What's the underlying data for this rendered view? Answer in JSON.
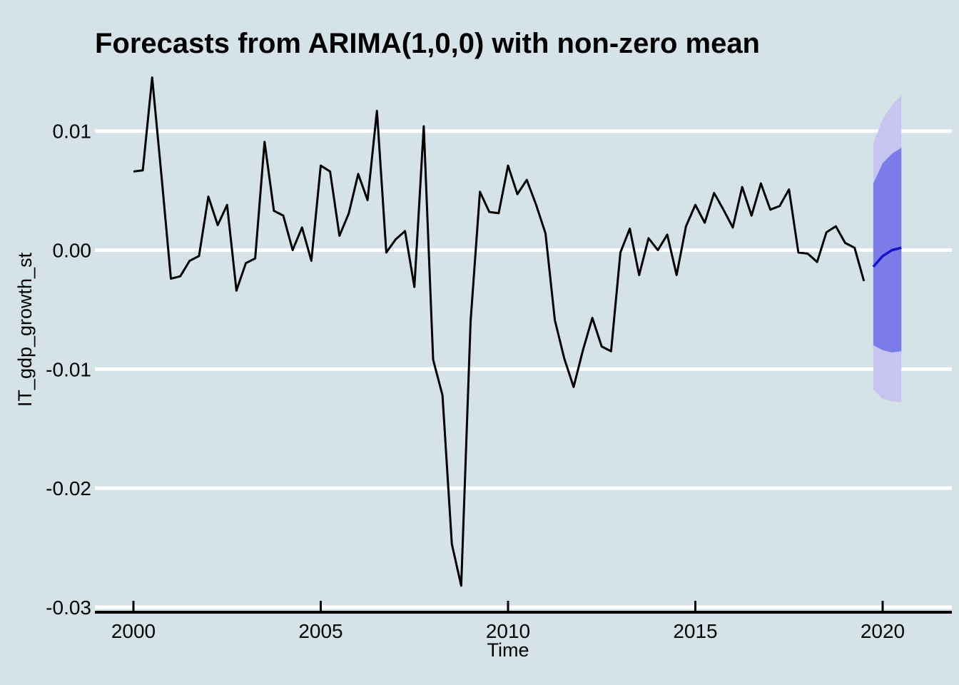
{
  "chart_data": {
    "type": "line",
    "title": "Forecasts from ARIMA(1,0,0) with non-zero mean",
    "xlabel": "Time",
    "ylabel": "IT_gdp_growth_st",
    "x_ticks": [
      2000,
      2005,
      2010,
      2015,
      2020
    ],
    "x_tick_labels": [
      "2000",
      "2005",
      "2010",
      "2015",
      "2020"
    ],
    "y_ticks": [
      0.01,
      0.0,
      -0.01,
      -0.02,
      -0.03
    ],
    "y_tick_labels": [
      "0.01",
      "0.00",
      "-0.01",
      "-0.02",
      "-0.03"
    ],
    "xlim": [
      1999.0,
      2021.8
    ],
    "ylim": [
      -0.0305,
      0.0157
    ],
    "grid": true,
    "legend": false,
    "observed": {
      "name": "IT_gdp_growth_st quarterly series",
      "start": 2000.0,
      "step": 0.25,
      "values": [
        0.0066,
        0.0067,
        0.0145,
        0.0062,
        -0.0024,
        -0.0022,
        -0.0009,
        -0.0005,
        0.0045,
        0.0021,
        0.0038,
        -0.0034,
        -0.0011,
        -0.0007,
        0.0091,
        0.0033,
        0.0029,
        0.0,
        0.0019,
        -0.0009,
        0.0071,
        0.0066,
        0.0012,
        0.0031,
        0.0064,
        0.0042,
        0.0117,
        -0.0002,
        0.0009,
        0.0016,
        -0.0031,
        0.0104,
        -0.0092,
        -0.0122,
        -0.0247,
        -0.0282,
        -0.006,
        0.0049,
        0.0032,
        0.0031,
        0.0071,
        0.0047,
        0.0059,
        0.0038,
        0.0014,
        -0.0059,
        -0.0091,
        -0.0115,
        -0.0084,
        -0.0057,
        -0.0081,
        -0.0085,
        -0.0002,
        0.0018,
        -0.0021,
        0.001,
        0.0,
        0.0013,
        -0.0021,
        0.002,
        0.0038,
        0.0023,
        0.0048,
        0.0034,
        0.0019,
        0.0053,
        0.0029,
        0.0056,
        0.0034,
        0.0037,
        0.0051,
        -0.0002,
        -0.0003,
        -0.001,
        0.0015,
        0.002,
        0.0006,
        0.0002,
        -0.0026
      ]
    },
    "forecast": {
      "x": [
        2019.75,
        2020.0,
        2020.25,
        2020.5
      ],
      "mean": [
        -0.0014,
        -0.0005,
        0.0,
        0.0002
      ],
      "hi80": [
        0.0056,
        0.0073,
        0.0081,
        0.0086
      ],
      "lo80": [
        -0.008,
        -0.0084,
        -0.0086,
        -0.0085
      ],
      "hi95": [
        0.009,
        0.011,
        0.0122,
        0.013
      ],
      "lo95": [
        -0.0117,
        -0.0125,
        -0.0127,
        -0.0128
      ]
    },
    "colors": {
      "background": "#D5E2E8",
      "gridline": "#FFFFFF",
      "series": "#000000",
      "axis": "#000000",
      "text": "#000000",
      "interval95": "#C6C6F0",
      "interval80": "#7C7CE8",
      "mean_line": "#1414CC"
    }
  }
}
